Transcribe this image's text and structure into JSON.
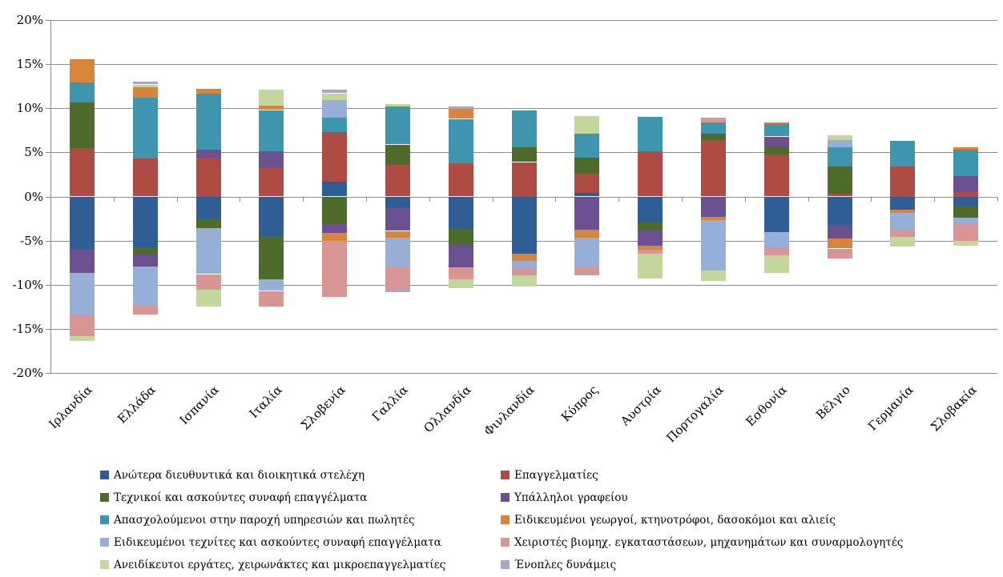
{
  "chart_data": {
    "type": "bar",
    "stacked": true,
    "title": "",
    "xlabel": "",
    "ylabel": "",
    "ylim": [
      -20,
      20
    ],
    "ytick_step": 5,
    "ytick_labels": [
      "20%",
      "15%",
      "10%",
      "5%",
      "0%",
      "-5%",
      "-10%",
      "-15%",
      "-20%"
    ],
    "grid": true,
    "gridline_color": "#8C8C8C",
    "legend_position": "bottom-two-columns",
    "legend_columns": [
      [
        0,
        2,
        4,
        6,
        8
      ],
      [
        1,
        3,
        5,
        7,
        9
      ]
    ],
    "categories": [
      "Ιρλανδία",
      "Ελλάδα",
      "Ισπανία",
      "Ιταλία",
      "Σλοβενία",
      "Γαλλία",
      "Ολλανδία",
      "Φινλανδία",
      "Κύπρος",
      "Αυστρία",
      "Πορτογαλία",
      "Εσθονία",
      "Βέλγιο",
      "Γερμανία",
      "Σλοβακία"
    ],
    "series": [
      {
        "name": "Ανώτερα διευθυντικά και διοικητικά στελέχη",
        "color": "#2E5C95",
        "values": [
          -6.0,
          -5.8,
          -2.5,
          -4.5,
          1.7,
          -1.2,
          -3.7,
          -6.5,
          0.4,
          -2.9,
          0,
          -4.0,
          -3.2,
          -1.5,
          -1.0
        ]
      },
      {
        "name": "Επαγγελματίες",
        "color": "#AE4B44",
        "values": [
          5.5,
          4.3,
          4.4,
          3.3,
          5.6,
          3.6,
          3.8,
          3.9,
          2.2,
          5.1,
          6.4,
          4.8,
          0.3,
          3.4,
          0.5
        ]
      },
      {
        "name": "Τεχνικοί και ασκούντες συναφή επαγγέλματα",
        "color": "#4E6B29",
        "values": [
          5.2,
          -0.8,
          -1.1,
          -4.9,
          -3.1,
          2.3,
          -1.8,
          1.7,
          1.8,
          -0.9,
          0.7,
          0.9,
          3.1,
          0,
          -1.4
        ]
      },
      {
        "name": "Υπάλληλοι γραφείου",
        "color": "#6A5091",
        "values": [
          -2.7,
          -1.3,
          0.9,
          1.8,
          -1.0,
          -2.7,
          -2.5,
          0,
          -3.8,
          -1.8,
          -2.3,
          1.1,
          -1.6,
          0,
          1.8
        ]
      },
      {
        "name": "Απασχολούμενοι στην παροχή υπηρεσιών και πωλητές",
        "color": "#3E95AE",
        "values": [
          2.2,
          6.9,
          6.4,
          4.7,
          1.6,
          4.3,
          5.0,
          4.2,
          2.7,
          3.9,
          1.3,
          1.4,
          2.2,
          2.9,
          3.0
        ]
      },
      {
        "name": "Ειδικευμένοι γεωργοί, κτηνοτρόφοι, δασοκόμοι και αλιείς",
        "color": "#D8843A",
        "values": [
          2.7,
          1.2,
          0.5,
          0.5,
          -0.9,
          -0.8,
          1.1,
          -0.8,
          -0.9,
          -0.4,
          -0.4,
          0.2,
          -1.1,
          -0.4,
          0.3
        ]
      },
      {
        "name": "Ειδικευμένοι τεχνίτες και ασκούντες συναφή επαγγέλματα",
        "color": "#95AFD8",
        "values": [
          -4.8,
          -4.5,
          -5.2,
          -1.3,
          2.0,
          -3.3,
          0,
          -0.9,
          -3.3,
          0,
          -5.7,
          -1.8,
          0.8,
          -1.9,
          -0.6
        ]
      },
      {
        "name": "Χειριστές βιομηχ. εγκαταστάσεων, μηχανημάτων και συναρμολογητές",
        "color": "#D79594",
        "values": [
          -2.3,
          -1.0,
          -1.8,
          -1.8,
          -6.4,
          -2.5,
          -1.4,
          -0.7,
          -0.9,
          -0.5,
          0.5,
          -0.9,
          -1.1,
          -0.8,
          -2.0
        ]
      },
      {
        "name": "Ανειδίκευτοι εργάτες, χειρωνάκτες και μικροεπαγγελματίες",
        "color": "#C3D69B",
        "values": [
          -0.6,
          0.3,
          -1.9,
          1.8,
          0.8,
          0.3,
          -1.0,
          -1.3,
          2.0,
          -2.8,
          -1.2,
          -2.0,
          0.5,
          -1.1,
          -0.6
        ]
      },
      {
        "name": "Ένοπλες δυνάμεις",
        "color": "#A9A4C6",
        "values": [
          0,
          0.3,
          0,
          0,
          0.4,
          -0.3,
          0.3,
          0,
          0,
          0,
          0,
          0,
          0,
          0,
          0
        ]
      }
    ]
  }
}
